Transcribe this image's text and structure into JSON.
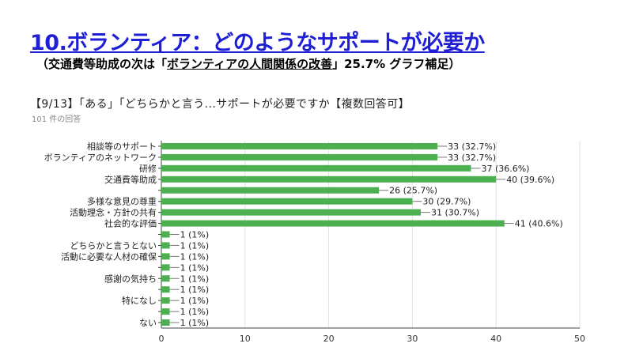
{
  "header": {
    "title": "10.ボランティア：どのようなサポートが必要か",
    "subtitle_pre": "（交通費等助成の次は「",
    "subtitle_highlight": "ボランティアの人間関係の改善",
    "subtitle_post": "」25.7%  グラフ補足）",
    "question": "【9/13】「ある」「どちらかと言う...サポートが必要ですか【複数回答可】",
    "responses": "101 件の回答"
  },
  "colors": {
    "bar": "#4caf50",
    "title": "#1f1fd6",
    "grid": "#e2e2e2",
    "axis": "#444444"
  },
  "chart_data": {
    "type": "bar",
    "orientation": "horizontal",
    "categories": [
      "相談等のサポート",
      "ボランティアのネットワーク",
      "研修",
      "交通費等助成",
      "",
      "多様な意見の尊重",
      "活動理念・方針の共有",
      "社会的な評価",
      "",
      "どちらかと言うとない",
      "活動に必要な人材の確保",
      "",
      "感謝の気持ち",
      "",
      "特になし",
      "",
      "ない"
    ],
    "values": [
      33,
      33,
      37,
      40,
      26,
      30,
      31,
      41,
      1,
      1,
      1,
      1,
      1,
      1,
      1,
      1,
      1
    ],
    "labels": [
      "33 (32.7%)",
      "33 (32.7%)",
      "37 (36.6%)",
      "40 (39.6%)",
      "26 (25.7%)",
      "30 (29.7%)",
      "31 (30.7%)",
      "41 (40.6%)",
      "1 (1%)",
      "1 (1%)",
      "1 (1%)",
      "1 (1%)",
      "1 (1%)",
      "1 (1%)",
      "1 (1%)",
      "1 (1%)",
      "1 (1%)"
    ],
    "xlim": [
      0,
      50
    ],
    "xticks": [
      0,
      10,
      20,
      30,
      40,
      50
    ],
    "grid": true
  }
}
